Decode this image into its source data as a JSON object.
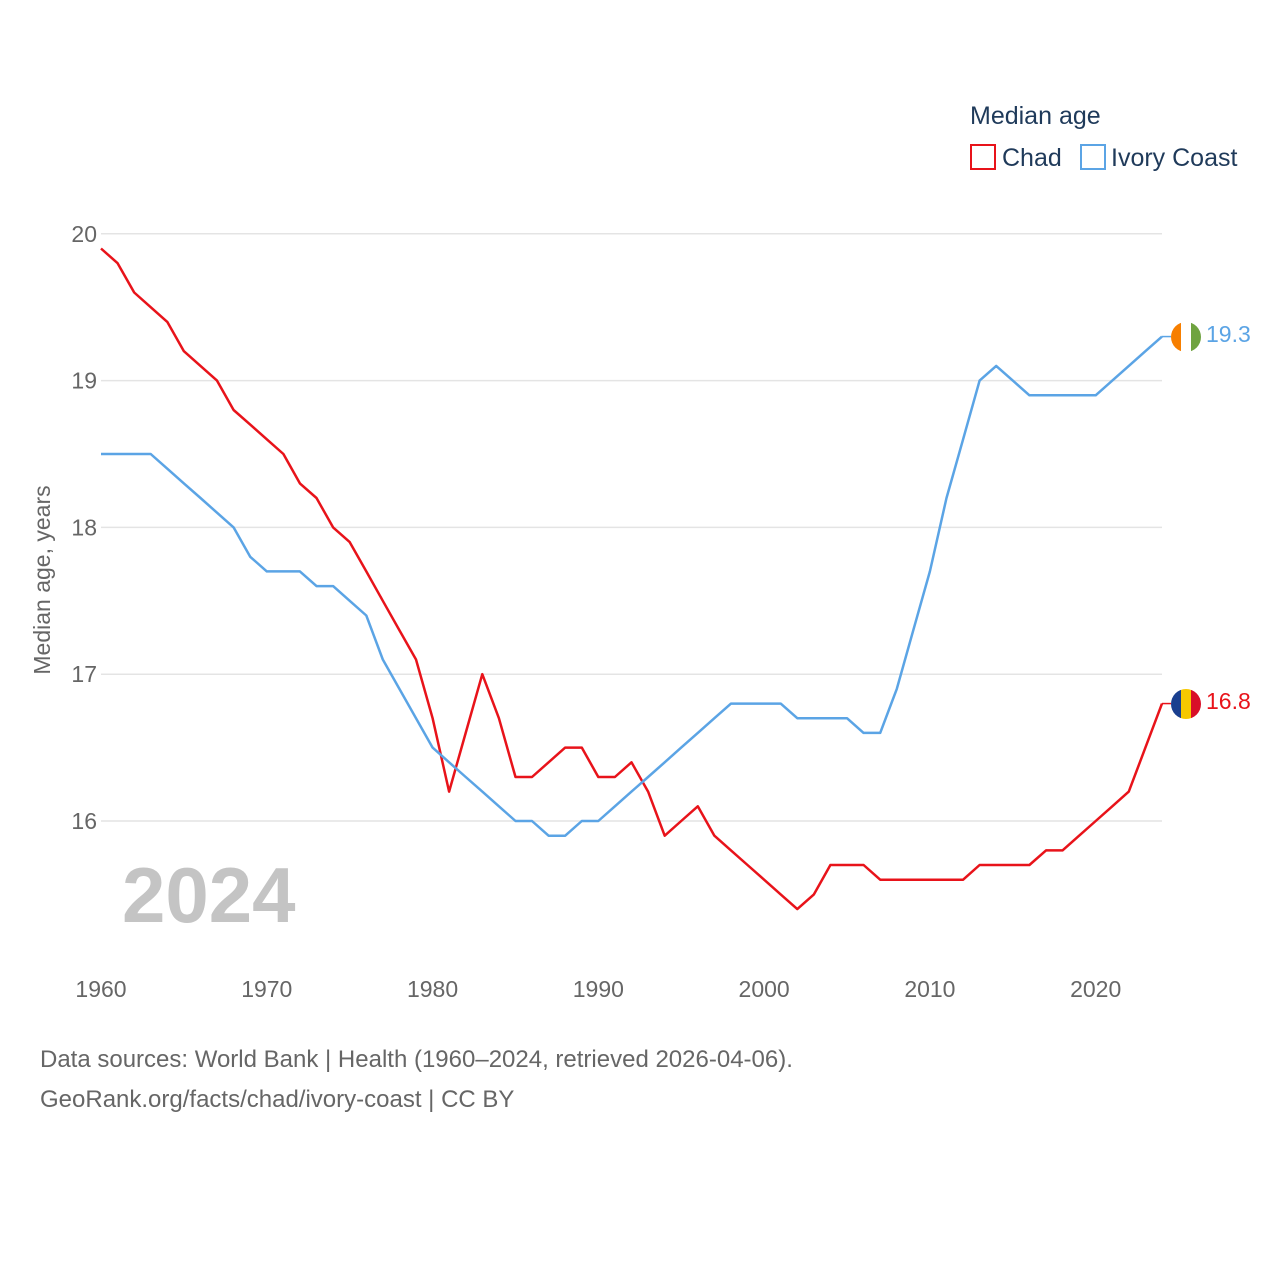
{
  "chart_data": {
    "type": "line",
    "legend_title": "Median age",
    "ylabel": "Median age, years",
    "xlabel": "",
    "ylim": [
      15,
      20.2
    ],
    "xlim": [
      1960,
      2024
    ],
    "y_ticks": [
      16,
      17,
      18,
      19,
      20
    ],
    "x_ticks": [
      1960,
      1970,
      1980,
      1990,
      2000,
      2010,
      2020
    ],
    "year_label": "2024",
    "legend_position": "top-right",
    "x": [
      1960,
      1961,
      1962,
      1963,
      1964,
      1965,
      1966,
      1967,
      1968,
      1969,
      1970,
      1971,
      1972,
      1973,
      1974,
      1975,
      1976,
      1977,
      1978,
      1979,
      1980,
      1981,
      1982,
      1983,
      1984,
      1985,
      1986,
      1987,
      1988,
      1989,
      1990,
      1991,
      1992,
      1993,
      1994,
      1995,
      1996,
      1997,
      1998,
      1999,
      2000,
      2001,
      2002,
      2003,
      2004,
      2005,
      2006,
      2007,
      2008,
      2009,
      2010,
      2011,
      2012,
      2013,
      2014,
      2015,
      2016,
      2017,
      2018,
      2019,
      2020,
      2021,
      2022,
      2023,
      2024
    ],
    "series": [
      {
        "name": "Chad",
        "color": "#e8131a",
        "end_label": "16.8",
        "values": [
          19.9,
          19.8,
          19.6,
          19.5,
          19.4,
          19.2,
          19.1,
          19.0,
          18.8,
          18.7,
          18.6,
          18.5,
          18.3,
          18.2,
          18.0,
          17.9,
          17.7,
          17.5,
          17.3,
          17.1,
          16.7,
          16.2,
          16.6,
          17.0,
          16.7,
          16.3,
          16.3,
          16.4,
          16.5,
          16.5,
          16.3,
          16.3,
          16.4,
          16.2,
          15.9,
          16.0,
          16.1,
          15.9,
          15.8,
          15.7,
          15.6,
          15.5,
          15.4,
          15.5,
          15.7,
          15.7,
          15.7,
          15.6,
          15.6,
          15.6,
          15.6,
          15.6,
          15.6,
          15.7,
          15.7,
          15.7,
          15.7,
          15.8,
          15.8,
          15.9,
          16.0,
          16.1,
          16.2,
          16.5,
          16.8
        ]
      },
      {
        "name": "Ivory Coast",
        "color": "#5ba4e5",
        "end_label": "19.3",
        "values": [
          18.5,
          18.5,
          18.5,
          18.5,
          18.4,
          18.3,
          18.2,
          18.1,
          18.0,
          17.8,
          17.7,
          17.7,
          17.7,
          17.6,
          17.6,
          17.5,
          17.4,
          17.1,
          16.9,
          16.7,
          16.5,
          16.4,
          16.3,
          16.2,
          16.1,
          16.0,
          16.0,
          15.9,
          15.9,
          16.0,
          16.0,
          16.1,
          16.2,
          16.3,
          16.4,
          16.5,
          16.6,
          16.7,
          16.8,
          16.8,
          16.8,
          16.8,
          16.7,
          16.7,
          16.7,
          16.7,
          16.6,
          16.6,
          16.9,
          17.3,
          17.7,
          18.2,
          18.6,
          19.0,
          19.1,
          19.0,
          18.9,
          18.9,
          18.9,
          18.9,
          18.9,
          19.0,
          19.1,
          19.2,
          19.3
        ]
      }
    ]
  },
  "footer": {
    "line1": "Data sources: World Bank | Health (1960–2024, retrieved 2026-04-06).",
    "line2": "GeoRank.org/facts/chad/ivory-coast | CC BY"
  }
}
